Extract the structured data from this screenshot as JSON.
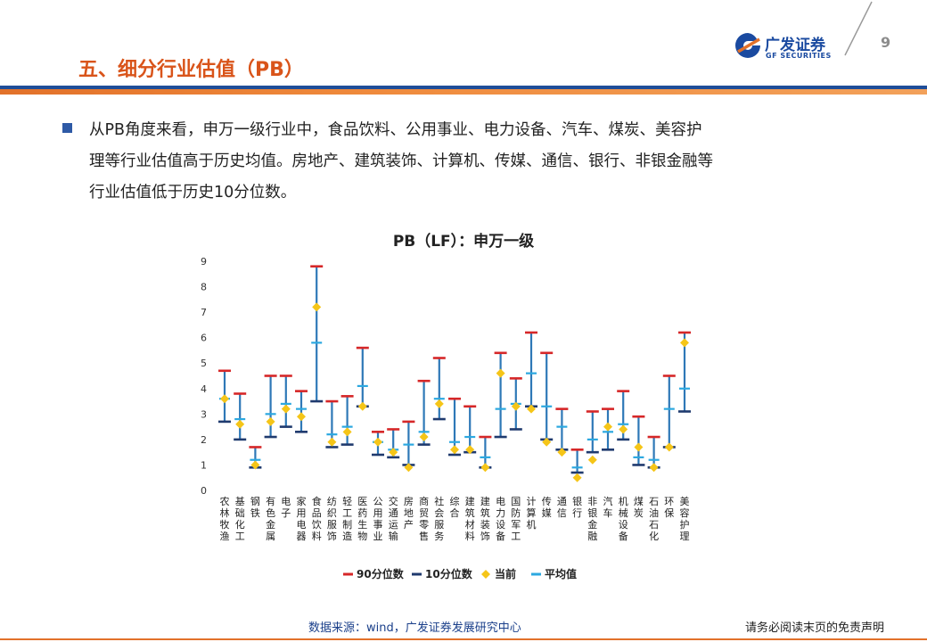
{
  "header": {
    "title": "五、细分行业估值（PB）",
    "logo_cn": "广发证券",
    "logo_en": "GF SECURITIES",
    "page_number": "9"
  },
  "bullet": {
    "lines": [
      "从PB角度来看，申万一级行业中，食品饮料、公用事业、电力设备、汽车、煤炭、美容护",
      "理等行业估值高于历史均值。房地产、建筑装饰、计算机、传媒、通信、银行、非银金融等",
      "行业估值低于历史10分位数。"
    ]
  },
  "footer": {
    "source": "数据来源：wind，广发证券发展研究中心",
    "disclaimer": "请务必阅读末页的免责声明"
  },
  "colors": {
    "p90": "#d62728",
    "p10": "#1f3a6e",
    "current": "#f5c518",
    "mean": "#2ca8e0",
    "range": "#2e78b7",
    "accent": "#e2712a",
    "brand": "#1a4aa0"
  },
  "chart_data": {
    "type": "range",
    "title": "PB（LF）：申万一级",
    "ylim": [
      0,
      9
    ],
    "yticks": [
      0,
      1,
      2,
      3,
      4,
      5,
      6,
      7,
      8,
      9
    ],
    "categories": [
      "农林牧渔",
      "基础化工",
      "钢铁",
      "有色金属",
      "电子",
      "家用电器",
      "食品饮料",
      "纺织服饰",
      "轻工制造",
      "医药生物",
      "公用事业",
      "交通运输",
      "房地产",
      "商贸零售",
      "社会服务",
      "综合",
      "建筑材料",
      "建筑装饰",
      "电力设备",
      "国防军工",
      "计算机",
      "传媒",
      "通信",
      "银行",
      "非银金融",
      "汽车",
      "机械设备",
      "煤炭",
      "石油石化",
      "环保",
      "美容护理"
    ],
    "series": [
      {
        "name": "90分位数",
        "values": [
          4.7,
          3.8,
          1.7,
          4.5,
          4.5,
          3.9,
          8.8,
          3.5,
          3.7,
          5.6,
          2.3,
          2.4,
          2.7,
          4.3,
          5.2,
          3.6,
          3.3,
          2.1,
          5.4,
          4.4,
          6.2,
          5.4,
          3.2,
          1.6,
          3.1,
          3.2,
          3.9,
          2.9,
          2.1,
          4.5,
          6.2
        ]
      },
      {
        "name": "10分位数",
        "values": [
          2.7,
          2.0,
          0.9,
          2.1,
          2.5,
          2.3,
          3.5,
          1.7,
          1.8,
          3.3,
          1.4,
          1.3,
          1.0,
          1.8,
          2.8,
          1.4,
          1.5,
          0.9,
          2.1,
          2.4,
          3.3,
          2.0,
          1.6,
          0.7,
          1.5,
          1.6,
          2.0,
          1.0,
          0.9,
          1.7,
          3.1
        ]
      },
      {
        "name": "当前",
        "values": [
          3.6,
          2.6,
          1.0,
          2.7,
          3.2,
          2.9,
          7.2,
          1.9,
          2.3,
          3.3,
          1.9,
          1.5,
          0.9,
          2.1,
          3.4,
          1.6,
          1.6,
          0.9,
          4.6,
          3.3,
          3.2,
          1.9,
          1.5,
          0.5,
          1.2,
          2.5,
          2.4,
          1.7,
          0.9,
          1.7,
          5.8
        ]
      },
      {
        "name": "平均值",
        "values": [
          3.6,
          2.8,
          1.2,
          3.0,
          3.4,
          3.2,
          5.8,
          2.2,
          2.5,
          4.1,
          1.9,
          1.6,
          1.8,
          2.3,
          3.6,
          1.9,
          2.1,
          1.3,
          3.2,
          3.4,
          4.6,
          3.3,
          2.5,
          0.9,
          2.0,
          2.3,
          2.6,
          1.3,
          1.2,
          3.2,
          4.0
        ]
      }
    ]
  }
}
